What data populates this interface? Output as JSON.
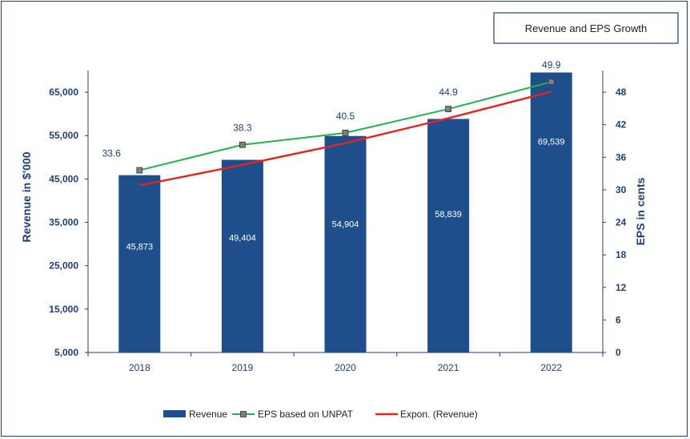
{
  "chart_data": {
    "type": "bar",
    "title": "Revenue and EPS Growth",
    "categories": [
      "2018",
      "2019",
      "2020",
      "2021",
      "2022"
    ],
    "ylabel": "Revenue in $'000",
    "y2label": "EPS in cents",
    "ylim": [
      5000,
      70000
    ],
    "y_ticks": [
      "5,000",
      "15,000",
      "25,000",
      "35,000",
      "45,000",
      "55,000",
      "65,000"
    ],
    "y2lim": [
      0,
      52
    ],
    "y2_ticks": [
      "0",
      "6",
      "12",
      "18",
      "24",
      "30",
      "36",
      "42",
      "48"
    ],
    "series": [
      {
        "name": "Revenue",
        "kind": "bar",
        "axis": "left",
        "color": "#1f4e8c",
        "values": [
          45873,
          49404,
          54904,
          58839,
          69539
        ],
        "labels": [
          "45,873",
          "49,404",
          "54,904",
          "58,839",
          "69,539"
        ]
      },
      {
        "name": "EPS based on UNPAT",
        "kind": "line",
        "axis": "right",
        "color": "#22b14c",
        "marker_color": "#7f7f7f",
        "values": [
          33.6,
          38.3,
          40.5,
          44.9,
          49.9
        ],
        "labels": [
          "33.6",
          "38.3",
          "40.5",
          "44.9",
          "49.9"
        ]
      },
      {
        "name": "Expon. (Revenue)",
        "kind": "trendline",
        "axis": "right",
        "color": "#e8231f",
        "values": [
          30.8,
          34.6,
          38.6,
          43.2,
          48.1
        ]
      }
    ],
    "grid": false,
    "legend_position": "bottom"
  }
}
